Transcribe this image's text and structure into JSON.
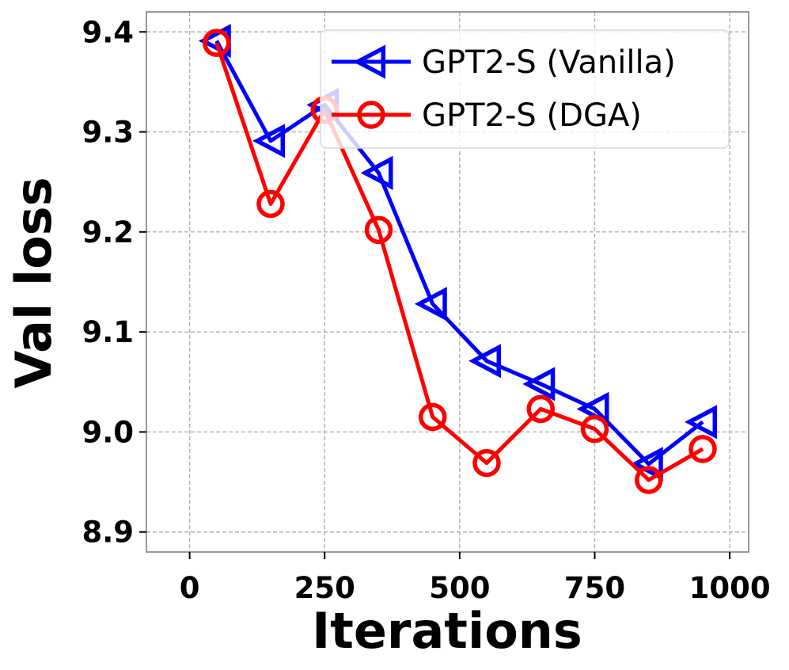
{
  "chart_data": {
    "type": "line",
    "title": "",
    "xlabel": "Iterations",
    "ylabel": "Val loss",
    "xlim": [
      -80,
      1035
    ],
    "ylim": [
      8.88,
      9.42
    ],
    "xticks": [
      0,
      250,
      500,
      750,
      1000
    ],
    "yticks": [
      8.9,
      9.0,
      9.1,
      9.2,
      9.3,
      9.4
    ],
    "xtick_labels": [
      "0",
      "250",
      "500",
      "750",
      "1000"
    ],
    "ytick_labels": [
      "8.9",
      "9.0",
      "9.1",
      "9.2",
      "9.3",
      "9.4"
    ],
    "grid": true,
    "legend_position": "top-right",
    "series": [
      {
        "name": "GPT2-S (Vanilla)",
        "color": "#0000ff",
        "marker": "triangle-left",
        "x": [
          50,
          150,
          250,
          350,
          450,
          550,
          650,
          750,
          850,
          950
        ],
        "y": [
          9.391,
          9.291,
          9.327,
          9.259,
          9.128,
          9.071,
          9.048,
          9.023,
          8.968,
          9.01
        ]
      },
      {
        "name": "GPT2-S (DGA)",
        "color": "#ff0000",
        "marker": "circle",
        "x": [
          50,
          150,
          250,
          350,
          450,
          550,
          650,
          750,
          850,
          950
        ],
        "y": [
          9.389,
          9.228,
          9.322,
          9.202,
          9.015,
          8.969,
          9.023,
          9.003,
          8.952,
          8.983
        ]
      }
    ]
  }
}
